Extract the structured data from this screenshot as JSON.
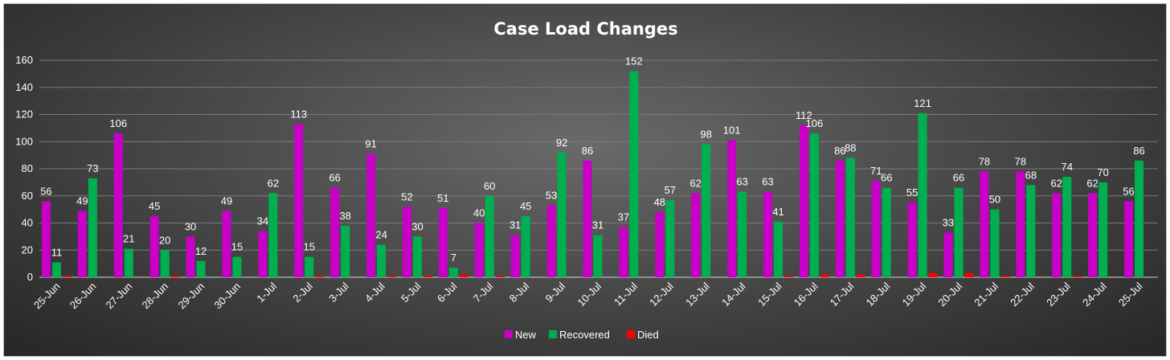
{
  "chart_data": {
    "type": "bar",
    "title": "Case Load Changes",
    "xlabel": "",
    "ylabel": "",
    "ylim": [
      0,
      160
    ],
    "yticks": [
      0,
      20,
      40,
      60,
      80,
      100,
      120,
      140,
      160
    ],
    "grid": true,
    "legend_position": "bottom",
    "categories": [
      "25-Jun",
      "26-Jun",
      "27-Jun",
      "28-Jun",
      "29-Jun",
      "30-Jun",
      "1-Jul",
      "2-Jul",
      "3-Jul",
      "4-Jul",
      "5-Jul",
      "6-Jul",
      "7-Jul",
      "8-Jul",
      "9-Jul",
      "10-Jul",
      "11-Jul",
      "12-Jul",
      "13-Jul",
      "14-Jul",
      "15-Jul",
      "16-Jul",
      "17-Jul",
      "18-Jul",
      "19-Jul",
      "20-Jul",
      "21-Jul",
      "22-Jul",
      "23-Jul",
      "24-Jul",
      "25-Jul"
    ],
    "series": [
      {
        "name": "New",
        "color": "#c800c8",
        "values": [
          56,
          49,
          106,
          45,
          30,
          49,
          34,
          113,
          66,
          91,
          52,
          51,
          40,
          31,
          53,
          86,
          37,
          48,
          62,
          101,
          63,
          112,
          86,
          71,
          55,
          33,
          78,
          78,
          62,
          62,
          56
        ],
        "labeled": true
      },
      {
        "name": "Recovered",
        "color": "#00b050",
        "values": [
          11,
          73,
          21,
          20,
          12,
          15,
          62,
          15,
          38,
          24,
          30,
          7,
          60,
          45,
          92,
          31,
          152,
          57,
          98,
          63,
          41,
          106,
          88,
          66,
          121,
          66,
          50,
          68,
          74,
          70,
          86
        ],
        "labeled": true
      },
      {
        "name": "Died",
        "color": "#ff0000",
        "values": [
          1,
          0,
          0,
          1,
          0,
          0,
          0,
          1,
          0,
          1,
          1,
          2,
          1,
          0,
          0,
          0,
          0,
          0,
          0,
          0,
          1,
          2,
          2,
          0,
          3,
          3,
          1,
          0,
          1,
          0,
          0
        ],
        "labeled": false
      }
    ]
  }
}
